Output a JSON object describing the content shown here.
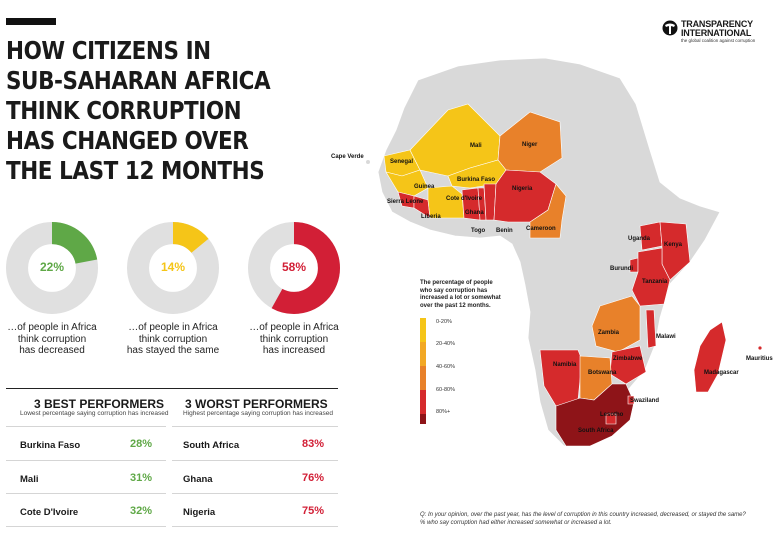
{
  "title_lines": [
    "HOW CITIZENS IN",
    "SUB-SAHARAN AFRICA",
    "THINK CORRUPTION",
    "HAS CHANGED OVER",
    "THE LAST 12 MONTHS"
  ],
  "brand": {
    "name_lines": [
      "TRANSPARENCY",
      "INTERNATIONAL"
    ],
    "tagline": "the global coalition against corruption"
  },
  "donuts": [
    {
      "value_label": "22%",
      "value": 0.22,
      "color": "#5fa847",
      "caption_lines": [
        "…of people in Africa",
        "think corruption",
        "has decreased"
      ]
    },
    {
      "value_label": "14%",
      "value": 0.14,
      "color": "#f5c518",
      "caption_lines": [
        "…of people in Africa",
        "think corruption",
        "has stayed the same"
      ]
    },
    {
      "value_label": "58%",
      "value": 0.58,
      "color": "#d21f36",
      "caption_lines": [
        "…of people in Africa",
        "think corruption",
        "has increased"
      ]
    }
  ],
  "best": {
    "heading": "3 BEST PERFORMERS",
    "subheading": "Lowest percentage saying corruption has increased",
    "rows": [
      {
        "country": "Burkina Faso",
        "value": "28%"
      },
      {
        "country": "Mali",
        "value": "31%"
      },
      {
        "country": "Cote D'Ivoire",
        "value": "32%"
      }
    ]
  },
  "worst": {
    "heading": "3 WORST PERFORMERS",
    "subheading": "Highest percentage saying corruption has increased",
    "rows": [
      {
        "country": "South Africa",
        "value": "83%"
      },
      {
        "country": "Ghana",
        "value": "76%"
      },
      {
        "country": "Nigeria",
        "value": "75%"
      }
    ]
  },
  "colors": {
    "good": "#5fa847",
    "bad": "#d21f36",
    "ring_bg": "#e0e0e0",
    "no_data": "#d9d9d9"
  },
  "map": {
    "labels": [
      "Cape Verde",
      "Senegal",
      "Mali",
      "Niger",
      "Guinea",
      "Burkina Faso",
      "Nigeria",
      "Sierra Leone",
      "Cote d'Ivoire",
      "Liberia",
      "Ghana",
      "Togo",
      "Benin",
      "Cameroon",
      "Uganda",
      "Kenya",
      "Burundi",
      "Tanzania",
      "Zambia",
      "Malawi",
      "Zimbabwe",
      "Namibia",
      "Botswana",
      "Madagascar",
      "Mauritius",
      "Swaziland",
      "Lesotho",
      "South Africa"
    ]
  },
  "legend": {
    "title_lines": [
      "The percentage of people",
      "who say corruption has",
      "increased a lot or somewhat",
      "over the past 12 months."
    ],
    "items": [
      {
        "label": "0-20%",
        "color": "#f5c518"
      },
      {
        "label": "20-40%",
        "color": "#f2a825"
      },
      {
        "label": "40-60%",
        "color": "#e8812a"
      },
      {
        "label": "60-80%",
        "color": "#d52a2c"
      },
      {
        "label": "80%+",
        "color": "#8e1418"
      }
    ]
  },
  "footnote_lines": [
    "Q: In your opinion, over the past year, has the level of corruption in this country increased, decreased, or stayed the same?",
    "% who say corruption had either increased somewhat or increased a lot."
  ]
}
